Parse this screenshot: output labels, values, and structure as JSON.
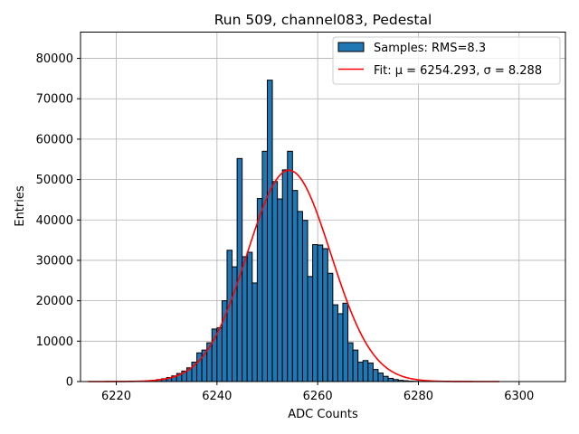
{
  "chart_data": {
    "type": "bar",
    "title": "Run 509, channel083, Pedestal",
    "xlabel": "ADC Counts",
    "ylabel": "Entries",
    "xlim": [
      6212.9,
      6309.2
    ],
    "ylim": [
      0,
      86500
    ],
    "grid": true,
    "legend_position": "top-right",
    "xticks": [
      6220,
      6240,
      6260,
      6280,
      6300
    ],
    "yticks": [
      0,
      10000,
      20000,
      30000,
      40000,
      50000,
      60000,
      70000,
      80000
    ],
    "histogram": {
      "bin_edges": [
        6225,
        6226,
        6227,
        6228,
        6229,
        6230,
        6231,
        6232,
        6233,
        6234,
        6235,
        6236,
        6237,
        6238,
        6239,
        6240,
        6241,
        6242,
        6243,
        6244,
        6245,
        6246,
        6247,
        6248,
        6249,
        6250,
        6251,
        6252,
        6253,
        6254,
        6255,
        6256,
        6257,
        6258,
        6259,
        6260,
        6261,
        6262,
        6263,
        6264,
        6265,
        6266,
        6267,
        6268,
        6269,
        6270,
        6271,
        6272,
        6273,
        6274,
        6275,
        6276,
        6277,
        6278,
        6279,
        6280,
        6281,
        6282,
        6283,
        6284
      ],
      "counts": [
        100,
        200,
        300,
        500,
        700,
        1000,
        1400,
        2000,
        2600,
        3400,
        4800,
        7100,
        7800,
        9600,
        13000,
        13300,
        20000,
        32500,
        28400,
        55200,
        30900,
        32000,
        24400,
        45300,
        57000,
        74600,
        49500,
        45200,
        52400,
        57000,
        47300,
        42100,
        39900,
        26000,
        33900,
        33800,
        32900,
        26800,
        19000,
        16800,
        19400,
        9600,
        7800,
        4800,
        5200,
        4600,
        3000,
        2100,
        1300,
        800,
        500,
        300,
        200,
        100,
        60,
        30,
        15,
        8,
        4
      ],
      "color": "#1f77b4",
      "edge_color": "#000000"
    },
    "fit": {
      "mu": 6254.293,
      "sigma": 8.288,
      "amplitude": 52300,
      "x_range": [
        6214.4,
        6296.1
      ],
      "color": "#ff0000"
    },
    "legend": [
      {
        "label": "Samples: RMS=8.3",
        "kind": "patch",
        "color": "#1f77b4"
      },
      {
        "label": "Fit: μ = 6254.293, σ = 8.288",
        "kind": "line",
        "color": "#ff0000"
      }
    ]
  }
}
